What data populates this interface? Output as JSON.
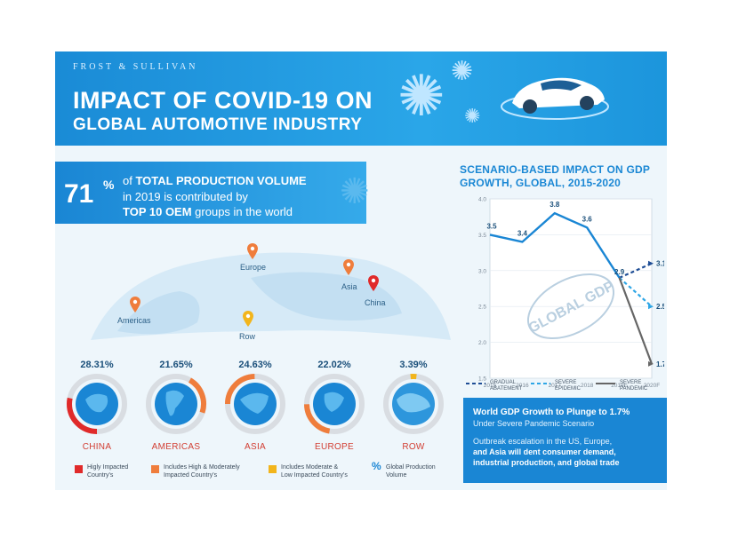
{
  "header": {
    "brand": "FROST & SULLIVAN",
    "title_line1": "IMPACT OF COVID-19 ON",
    "title_line2": "GLOBAL AUTOMOTIVE INDUSTRY"
  },
  "stat": {
    "number": "71",
    "percent": "%",
    "line1_a": "of ",
    "line1_b": "TOTAL PRODUCTION VOLUME",
    "line2": "in 2019 is contributed by",
    "line3_a": "TOP 10 OEM",
    "line3_b": " groups in the world"
  },
  "map": {
    "pins": [
      {
        "label": "Europe",
        "color": "#ef7d3c"
      },
      {
        "label": "Asia",
        "color": "#ef7d3c"
      },
      {
        "label": "China",
        "color": "#e02a2a"
      },
      {
        "label": "Americas",
        "color": "#ef7d3c"
      },
      {
        "label": "Row",
        "color": "#f2b51c"
      }
    ]
  },
  "regions": [
    {
      "name": "CHINA",
      "share_label": "28.31%",
      "share": 28.31,
      "color": "#e02a2a"
    },
    {
      "name": "AMERICAS",
      "share_label": "21.65%",
      "share": 21.65,
      "color": "#ef7d3c"
    },
    {
      "name": "ASIA",
      "share_label": "24.63%",
      "share": 24.63,
      "color": "#ef7d3c"
    },
    {
      "name": "EUROPE",
      "share_label": "22.02%",
      "share": 22.02,
      "color": "#ef7d3c"
    },
    {
      "name": "ROW",
      "share_label": "3.39%",
      "share": 3.39,
      "color": "#f2b51c"
    }
  ],
  "legend": [
    {
      "text1": "Higly Impacted",
      "text2": "Country's",
      "color": "#e02a2a"
    },
    {
      "text1": "Includes High & Moderately",
      "text2": "Impacted Country's",
      "color": "#ef7d3c"
    },
    {
      "text1": "Includes Moderate &",
      "text2": "Low Impacted Country's",
      "color": "#f2b51c"
    },
    {
      "symbol": "%",
      "text1": "Global Production",
      "text2": "Volume"
    }
  ],
  "chart_data": {
    "type": "line",
    "title_line1": "SCENARIO-BASED IMPACT ON GDP",
    "title_line2": "GROWTH, GLOBAL, 2015-2020",
    "categories": [
      "2015",
      "2016",
      "2017",
      "2018",
      "2019E",
      "2020F"
    ],
    "ylim": [
      1.5,
      4.0
    ],
    "yticks": [
      "1.5",
      "2.0",
      "2.5",
      "3.0",
      "3.5",
      "4.0"
    ],
    "history": [
      3.5,
      3.4,
      3.8,
      3.6,
      2.9
    ],
    "history_labels": [
      "3.5",
      "3.4",
      "3.8",
      "3.6",
      "2.9"
    ],
    "series": [
      {
        "name": "GRADUAL ABATEMENT",
        "name_l1": "GRADUAL",
        "name_l2": "ABATEMENT",
        "from": 2.9,
        "to": 3.1,
        "label": "3.1",
        "color": "#1f4e96",
        "dash": "4,3"
      },
      {
        "name": "SEVERE EPIDEMIC",
        "name_l1": "SEVERE",
        "name_l2": "EPIDEMIC",
        "from": 2.9,
        "to": 2.5,
        "label": "2.5",
        "color": "#2ea6e6",
        "dash": "4,3"
      },
      {
        "name": "SEVERE PANDEMIC",
        "name_l1": "SEVERE",
        "name_l2": "PANDEMIC",
        "from": 2.9,
        "to": 1.7,
        "label": "1.7",
        "color": "#666666",
        "dash": ""
      }
    ],
    "stamp": "GLOBAL GDP"
  },
  "callout": {
    "line1": "World GDP Growth to Plunge to 1.7%",
    "line2": "Under Severe Pandemic Scenario",
    "line3": "Outbreak escalation in the US, Europe,",
    "line4": "and Asia will dent consumer demand,",
    "line5": "industrial production, and global trade"
  }
}
